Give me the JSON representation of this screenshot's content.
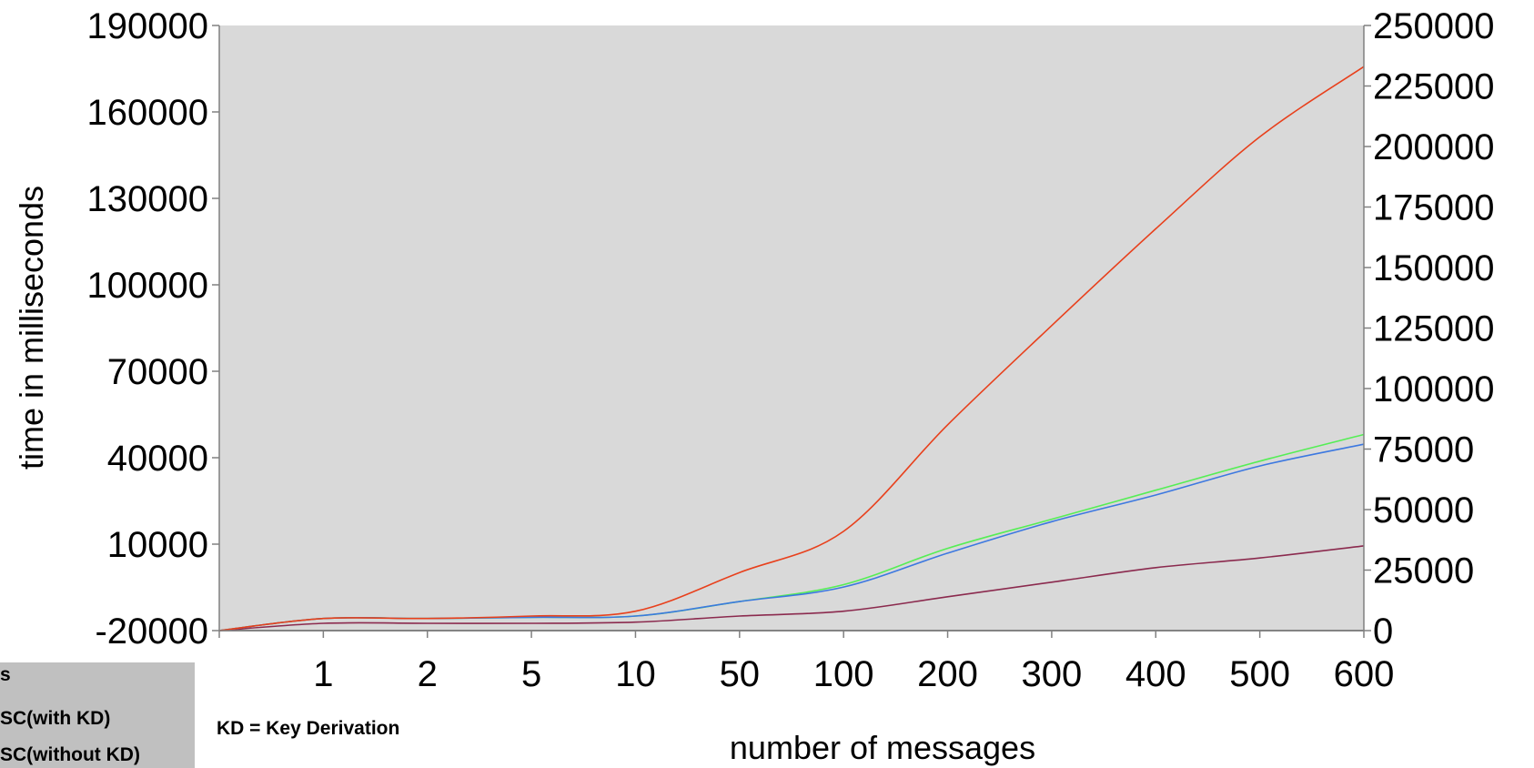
{
  "chart_data": {
    "type": "line",
    "xlabel": "number of messages",
    "ylabel": "time in milliseconds",
    "categories": [
      "",
      "1",
      "2",
      "5",
      "10",
      "50",
      "100",
      "200",
      "300",
      "400",
      "500",
      "600"
    ],
    "y_ticks": [
      "190000",
      "160000",
      "130000",
      "100000",
      "70000",
      "40000",
      "10000",
      "-20000"
    ],
    "ylim": [
      -20000,
      190000
    ],
    "y2_ticks": [
      "250000",
      "225000",
      "200000",
      "175000",
      "150000",
      "125000",
      "100000",
      "75000",
      "50000",
      "25000",
      "0"
    ],
    "y2lim": [
      0,
      250000
    ],
    "grid": false,
    "plot_background": "#d9d9d9",
    "series": [
      {
        "color": "#e8401c",
        "values": [
          0,
          5000,
          5000,
          6000,
          8000,
          24000,
          41000,
          85000,
          126000,
          166000,
          204000,
          233000
        ]
      },
      {
        "color": "#3c78e0",
        "values": [
          0,
          5000,
          5000,
          5500,
          6000,
          12000,
          18000,
          32000,
          45000,
          56000,
          68000,
          77000
        ]
      },
      {
        "color": "#55ee55",
        "values": [
          0,
          5000,
          5000,
          5500,
          6000,
          12000,
          19000,
          34000,
          46000,
          58000,
          70000,
          81000
        ]
      },
      {
        "color": "#8b2a4e",
        "values": [
          0,
          3000,
          3000,
          3000,
          3500,
          6000,
          8000,
          14000,
          20000,
          26000,
          30000,
          35000
        ]
      },
      {
        "color": "#303030",
        "values": [
          0,
          0,
          0,
          0,
          0,
          0,
          0,
          0,
          0,
          0,
          0,
          0
        ]
      }
    ],
    "legend": {
      "position": "bottom-left",
      "lines": [
        "s",
        "SC(with KD)",
        "SC(without KD)"
      ]
    },
    "annotation": "KD = Key Derivation"
  }
}
